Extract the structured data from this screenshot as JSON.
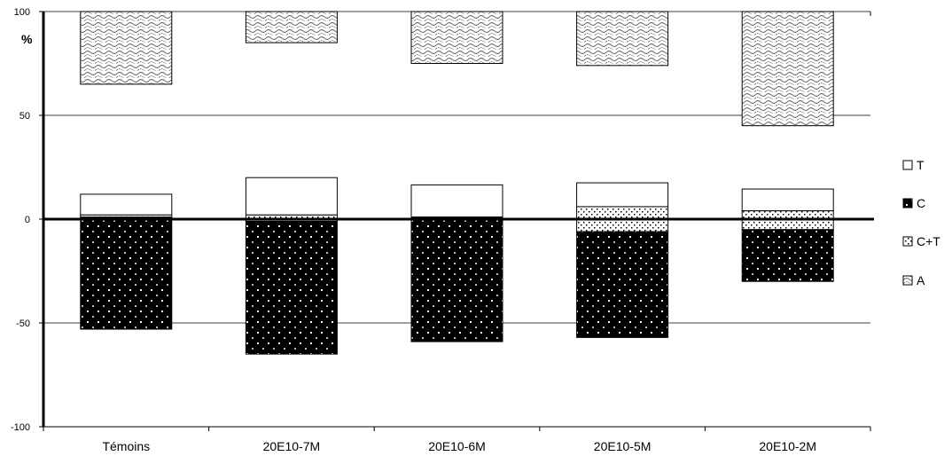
{
  "chart_data": {
    "type": "bar",
    "stacked": true,
    "categories": [
      "Témoins",
      "20E10-7M",
      "20E10-6M",
      "20E10-5M",
      "20E10-2M"
    ],
    "ylabel": "%",
    "ylim": [
      -100,
      100
    ],
    "yticks": [
      100,
      50,
      0,
      -50,
      -100
    ],
    "grid": true,
    "legend_position": "right",
    "series": [
      {
        "name": "T",
        "pattern": "white",
        "segments": [
          [
            2,
            12
          ],
          [
            2,
            20
          ],
          [
            1,
            16.5
          ],
          [
            6,
            17.5
          ],
          [
            4,
            14.5
          ]
        ]
      },
      {
        "name": "C",
        "pattern": "black-dotted",
        "segments": [
          [
            -53,
            1
          ],
          [
            -65,
            -1
          ],
          [
            -59,
            1
          ],
          [
            -57,
            -6
          ],
          [
            -30,
            -5
          ]
        ]
      },
      {
        "name": "C+T",
        "pattern": "dotted",
        "segments": [
          [
            1,
            2
          ],
          [
            -1,
            2
          ],
          [
            0,
            0
          ],
          [
            -6,
            6
          ],
          [
            -5,
            4
          ]
        ]
      },
      {
        "name": "A",
        "pattern": "wavy",
        "segments": [
          [
            65,
            100
          ],
          [
            85,
            100
          ],
          [
            75,
            100
          ],
          [
            74,
            100
          ],
          [
            45,
            100
          ]
        ]
      }
    ]
  }
}
